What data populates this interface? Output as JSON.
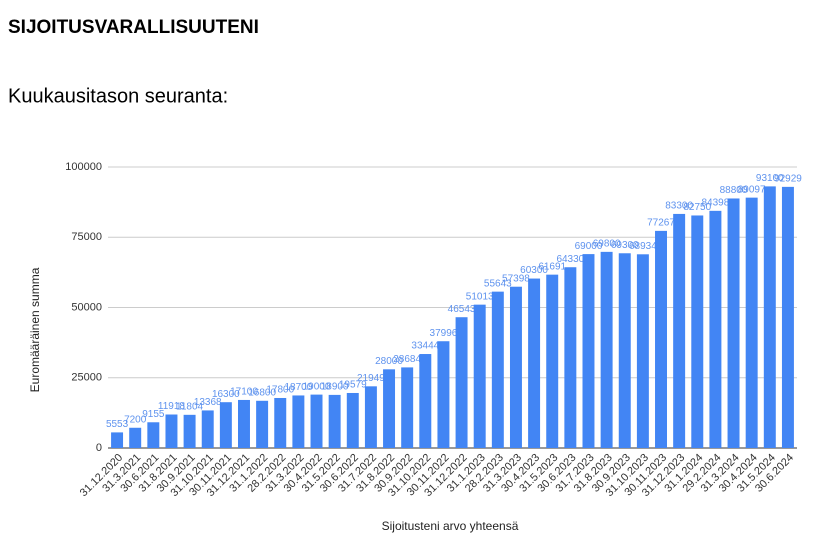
{
  "heading": "SIJOITUSVARALLISUUTENI",
  "subheading": "Kuukausitason seuranta:",
  "chart_data": {
    "type": "bar",
    "x_label": "Sijoitusteni arvo yhteensä",
    "y_label": "Euromääräinen summa",
    "categories": [
      "31.12.2020",
      "31.3.2021",
      "30.6.2021",
      "31.8.2021",
      "30.9.2021",
      "31.10.2021",
      "30.11.2021",
      "31.12.2021",
      "31.1.2022",
      "28.2.2022",
      "31.3.2022",
      "30.4.2022",
      "31.5.2022",
      "30.6.2022",
      "31.7.2022",
      "31.8.2022",
      "30.9.2022",
      "31.10.2022",
      "30.11.2022",
      "31.12.2022",
      "31.1.2023",
      "28.2.2023",
      "31.3.2023",
      "30.4.2023",
      "31.5.2023",
      "30.6.2023",
      "31.7.2023",
      "31.8.2023",
      "30.9.2023",
      "31.10.2023",
      "30.11.2023",
      "31.12.2023",
      "31.1.2024",
      "29.2.2024",
      "31.3.2024",
      "30.4.2024",
      "31.5.2024",
      "30.6.2024"
    ],
    "values": [
      5553,
      7200,
      9155,
      11918,
      11804,
      13368,
      16300,
      17100,
      16800,
      17800,
      18700,
      19000,
      18900,
      19579,
      21949,
      28000,
      28684,
      33444,
      37996,
      46543,
      51013,
      55643,
      57398,
      60300,
      61691,
      64330,
      69000,
      69800,
      69300,
      68934,
      77267,
      83300,
      82750,
      84398,
      88800,
      89097,
      93100,
      92929
    ],
    "color": "#4285f4",
    "label_color": "#5f93ee",
    "ylim": [
      0,
      100000
    ],
    "yticks": [
      0,
      25000,
      50000,
      75000,
      100000
    ],
    "grid": true
  }
}
